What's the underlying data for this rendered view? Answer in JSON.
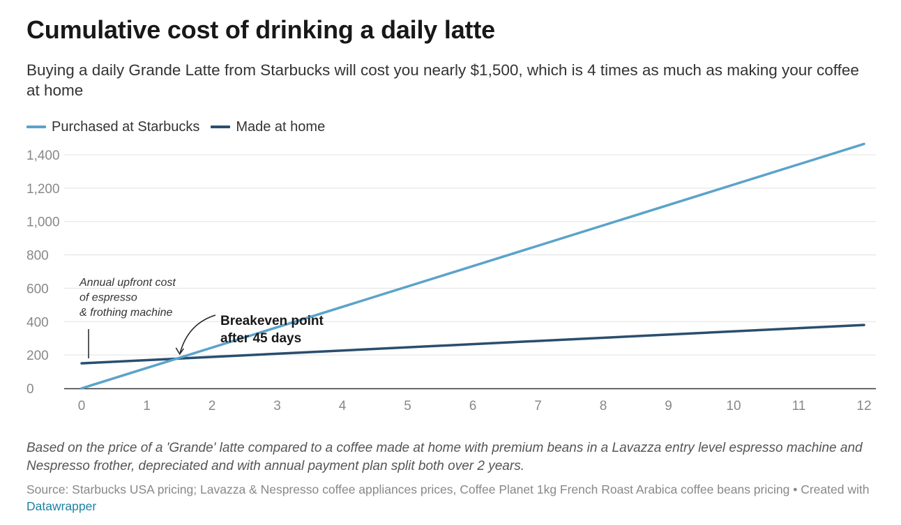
{
  "header": {
    "title": "Cumulative cost of drinking a daily latte",
    "subtitle": "Buying a daily Grande Latte from Starbucks will cost you nearly $1,500, which is 4 times as much as making your coffee at home"
  },
  "colors": {
    "starbucks": "#5ba3c9",
    "home": "#2a4e6e",
    "gridline": "#e0e0e0",
    "axis": "#333333",
    "tick_label": "#888888"
  },
  "chart_data": {
    "type": "line",
    "title": "Cumulative cost of drinking a daily latte",
    "xlabel": "",
    "ylabel": "",
    "xlim": [
      0,
      12
    ],
    "ylim": [
      0,
      1400
    ],
    "x_ticks": [
      "0",
      "1",
      "2",
      "3",
      "4",
      "5",
      "6",
      "7",
      "8",
      "9",
      "10",
      "11",
      "12"
    ],
    "y_ticks": [
      "0",
      "200",
      "400",
      "600",
      "800",
      "1,000",
      "1,200",
      "1,400"
    ],
    "grid": true,
    "legend_position": "top-left",
    "series": [
      {
        "name": "Purchased at Starbucks",
        "color": "#5ba3c9",
        "points": [
          [
            0,
            0
          ],
          [
            12,
            1465
          ]
        ]
      },
      {
        "name": "Made at home",
        "color": "#2a4e6e",
        "points": [
          [
            0,
            150
          ],
          [
            12,
            380
          ]
        ]
      }
    ],
    "annotations": {
      "upfront_cost": [
        "Annual upfront cost",
        "of espresso",
        "& frothing machine"
      ],
      "breakeven": [
        "Breakeven point",
        "after 45 days"
      ],
      "breakeven_point": [
        1.5,
        180
      ]
    }
  },
  "footer": {
    "notes": "Based on the price of a 'Grande' latte compared to a coffee made at home with premium beans in a Lavazza entry level espresso machine and Nespresso frother, depreciated and with annual payment plan split both over 2 years.",
    "source": "Source: Starbucks USA pricing; Lavazza & Nespresso coffee appliances prices, Coffee Planet 1kg French Roast Arabica coffee beans pricing • Created with",
    "credit_link": "Datawrapper"
  }
}
